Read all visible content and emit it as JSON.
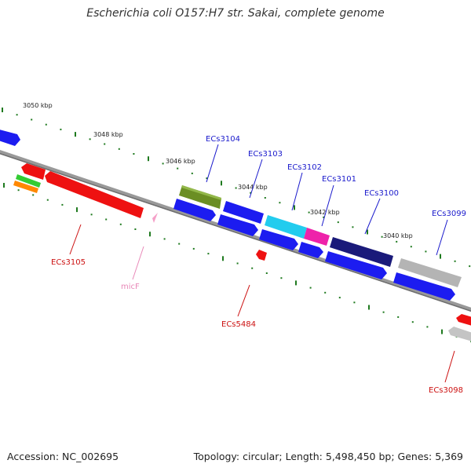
{
  "title": "Escherichia coli O157:H7 str. Sakai, complete genome",
  "footer": {
    "accession": "Accession: NC_002695",
    "summary": "Topology: circular; Length: 5,498,450 bp; Genes: 5,369"
  },
  "axis": {
    "tick_labels": [
      "3050 kbp",
      "3048 kbp",
      "3046 kbp",
      "3044 kbp",
      "3042 kbp",
      "3040 kbp"
    ]
  },
  "genes": {
    "forward_labels": [
      "ECs3104",
      "ECs3103",
      "ECs3102",
      "ECs3101",
      "ECs3100",
      "ECs3099"
    ],
    "reverse_labels": [
      "ECs3105",
      "micF",
      "ECs5484",
      "ECs3098"
    ]
  },
  "colors": {
    "forward_label": "#1a1acc",
    "reverse_label": "#cc1111",
    "rna_label": "#e888b8",
    "tick": "#1f7a1f",
    "backbone": "#808080"
  }
}
